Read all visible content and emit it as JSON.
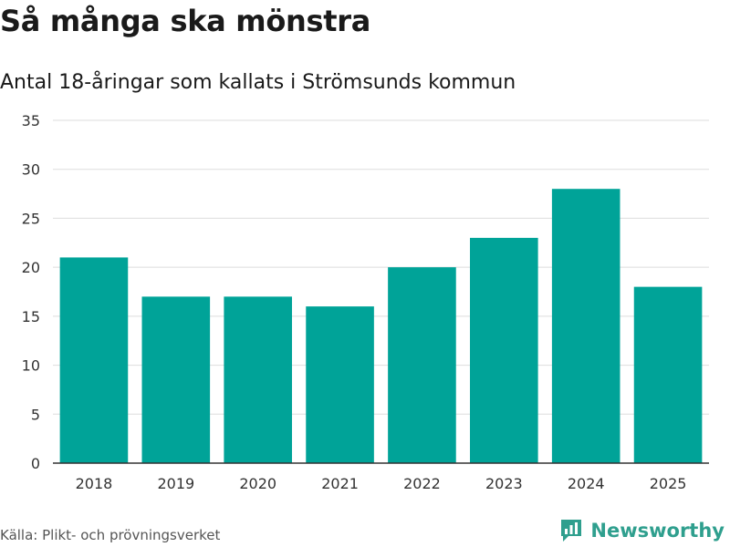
{
  "header": {
    "title": "Så många ska mönstra",
    "subtitle": "Antal 18-åringar som kallats i Strömsunds kommun"
  },
  "footer": {
    "source": "Källa: Plikt- och prövningsverket",
    "brand": "Newsworthy",
    "brand_icon": "newsworthy-logo-icon"
  },
  "colors": {
    "bar": "#00A398",
    "grid": "#dddddd",
    "axis": "#333333",
    "brand": "#2f9f8e"
  },
  "chart_data": {
    "type": "bar",
    "title": "Så många ska mönstra",
    "subtitle": "Antal 18-åringar som kallats i Strömsunds kommun",
    "categories": [
      "2018",
      "2019",
      "2020",
      "2021",
      "2022",
      "2023",
      "2024",
      "2025"
    ],
    "values": [
      21,
      17,
      17,
      16,
      20,
      23,
      28,
      18
    ],
    "xlabel": "",
    "ylabel": "",
    "ylim": [
      0,
      35
    ],
    "yticks": [
      0,
      5,
      10,
      15,
      20,
      25,
      30,
      35
    ],
    "grid": true,
    "legend": "none"
  }
}
